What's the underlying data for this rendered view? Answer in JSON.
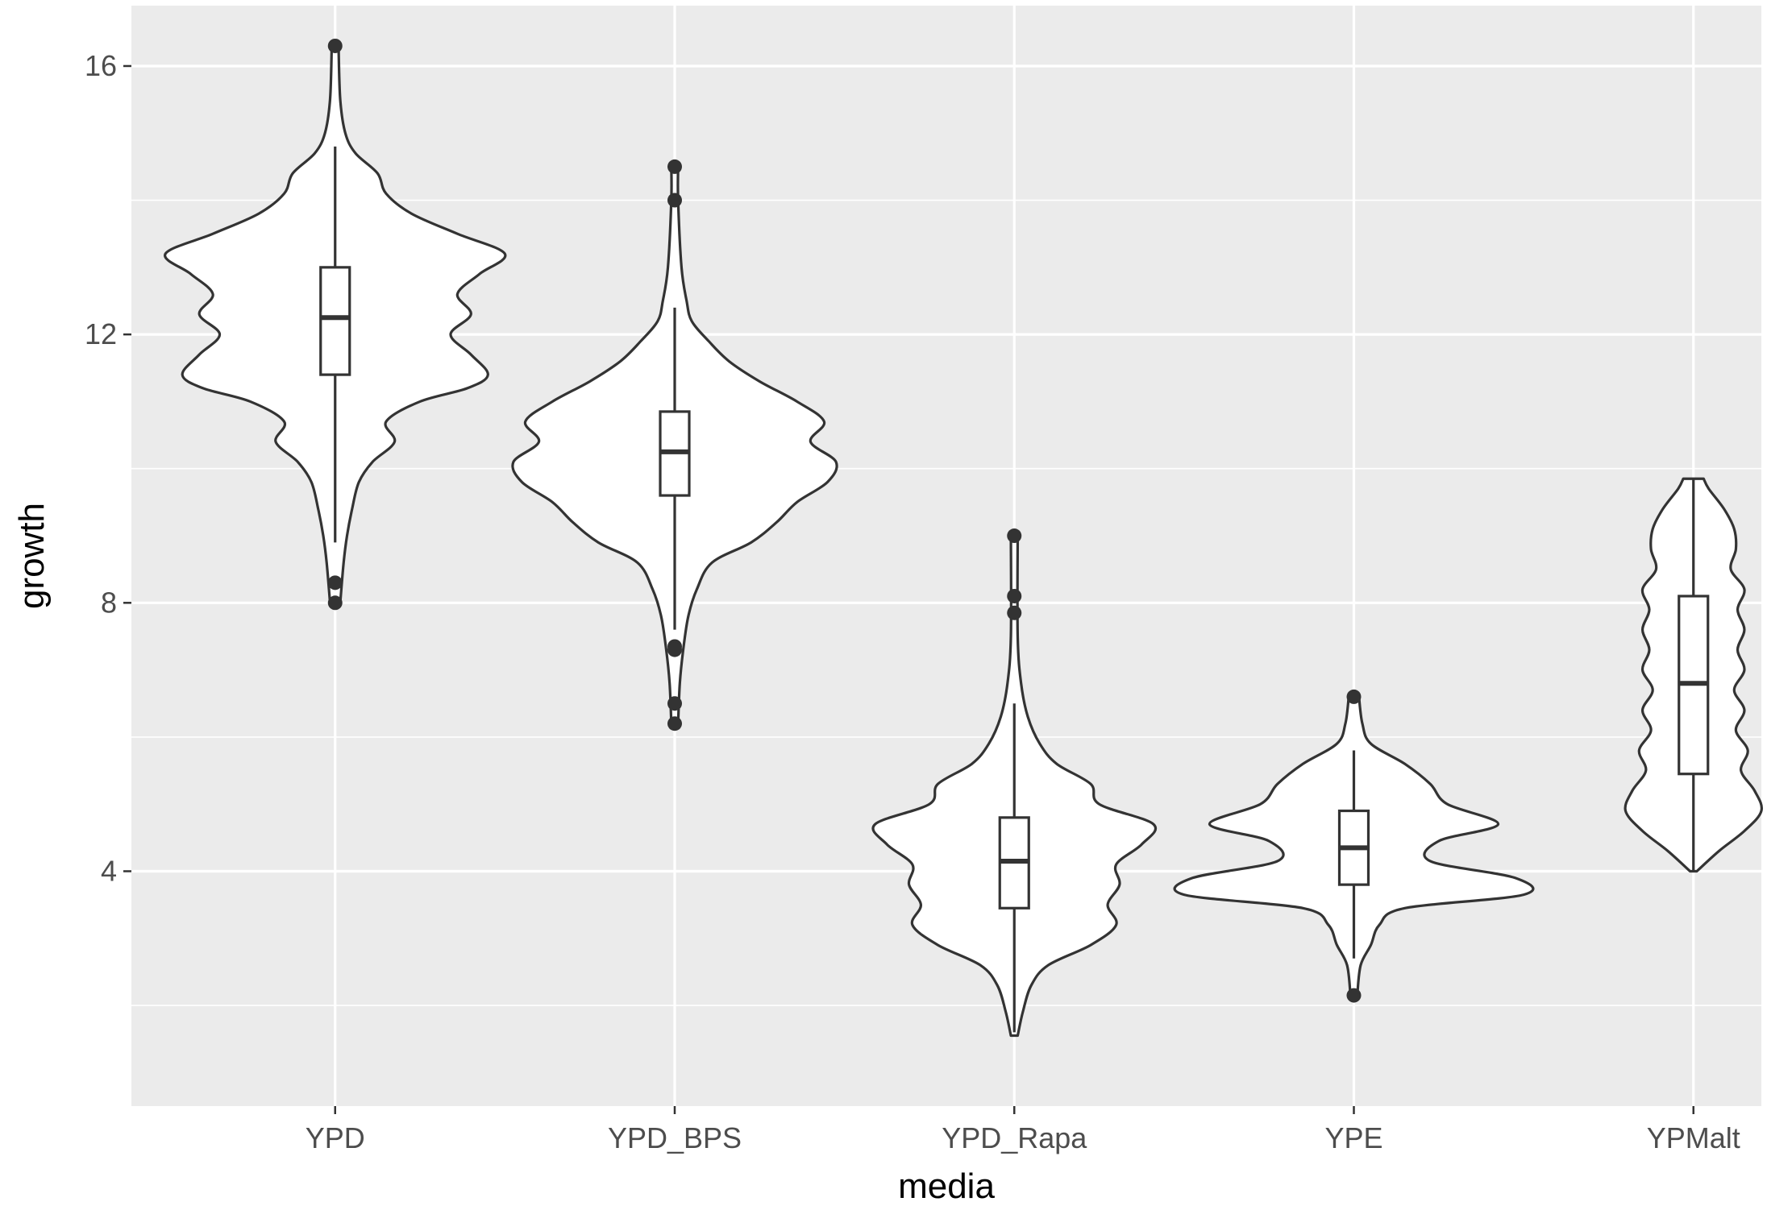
{
  "chart_data": {
    "type": "violin",
    "xlabel": "media",
    "ylabel": "growth",
    "categories": [
      "YPD",
      "YPD_BPS",
      "YPD_Rapa",
      "YPE",
      "YPMalt"
    ],
    "ylim": [
      0.5,
      16.9
    ],
    "yticks": [
      4,
      8,
      12,
      16
    ],
    "grid": true,
    "colors": {
      "panel": "#ebebeb",
      "grid": "#ffffff",
      "outline": "#333333",
      "fill": "#ffffff",
      "tick_text": "#4d4d4d"
    },
    "series": [
      {
        "name": "YPD",
        "box": {
          "q1": 11.4,
          "median": 12.25,
          "q3": 13.0,
          "whisker_low": 8.9,
          "whisker_high": 14.8
        },
        "outliers": [
          16.3,
          8.3,
          8.0
        ],
        "violin_range": [
          8.0,
          16.3
        ],
        "violin": [
          [
            8.0,
            0.03
          ],
          [
            8.6,
            0.05
          ],
          [
            9.0,
            0.07
          ],
          [
            9.4,
            0.1
          ],
          [
            9.8,
            0.14
          ],
          [
            10.1,
            0.22
          ],
          [
            10.4,
            0.35
          ],
          [
            10.7,
            0.3
          ],
          [
            11.0,
            0.5
          ],
          [
            11.2,
            0.78
          ],
          [
            11.4,
            0.9
          ],
          [
            11.7,
            0.8
          ],
          [
            12.0,
            0.68
          ],
          [
            12.3,
            0.8
          ],
          [
            12.6,
            0.72
          ],
          [
            12.9,
            0.85
          ],
          [
            13.2,
            1.0
          ],
          [
            13.5,
            0.72
          ],
          [
            13.8,
            0.45
          ],
          [
            14.1,
            0.3
          ],
          [
            14.4,
            0.25
          ],
          [
            14.7,
            0.12
          ],
          [
            15.0,
            0.06
          ],
          [
            15.5,
            0.03
          ],
          [
            16.3,
            0.02
          ]
        ]
      },
      {
        "name": "YPD_BPS",
        "box": {
          "q1": 9.6,
          "median": 10.25,
          "q3": 10.85,
          "whisker_low": 7.6,
          "whisker_high": 12.4
        },
        "outliers": [
          14.5,
          14.0,
          7.35,
          7.3,
          6.5,
          6.2
        ],
        "violin_range": [
          6.2,
          14.5
        ],
        "violin": [
          [
            6.2,
            0.02
          ],
          [
            6.8,
            0.03
          ],
          [
            7.3,
            0.05
          ],
          [
            7.8,
            0.08
          ],
          [
            8.2,
            0.13
          ],
          [
            8.6,
            0.22
          ],
          [
            8.9,
            0.45
          ],
          [
            9.2,
            0.6
          ],
          [
            9.5,
            0.72
          ],
          [
            9.8,
            0.9
          ],
          [
            10.1,
            0.95
          ],
          [
            10.4,
            0.8
          ],
          [
            10.7,
            0.88
          ],
          [
            11.0,
            0.72
          ],
          [
            11.3,
            0.5
          ],
          [
            11.6,
            0.32
          ],
          [
            11.9,
            0.2
          ],
          [
            12.2,
            0.1
          ],
          [
            12.5,
            0.07
          ],
          [
            13.0,
            0.04
          ],
          [
            14.0,
            0.02
          ],
          [
            14.5,
            0.02
          ]
        ]
      },
      {
        "name": "YPD_Rapa",
        "box": {
          "q1": 3.45,
          "median": 4.15,
          "q3": 4.8,
          "whisker_low": 1.6,
          "whisker_high": 6.5
        },
        "outliers": [
          9.0,
          8.1,
          7.85
        ],
        "violin_range": [
          1.55,
          9.0
        ],
        "violin": [
          [
            1.55,
            0.02
          ],
          [
            1.9,
            0.05
          ],
          [
            2.3,
            0.1
          ],
          [
            2.6,
            0.2
          ],
          [
            2.9,
            0.45
          ],
          [
            3.2,
            0.6
          ],
          [
            3.5,
            0.55
          ],
          [
            3.8,
            0.62
          ],
          [
            4.1,
            0.6
          ],
          [
            4.4,
            0.75
          ],
          [
            4.7,
            0.82
          ],
          [
            5.0,
            0.5
          ],
          [
            5.3,
            0.45
          ],
          [
            5.6,
            0.25
          ],
          [
            5.9,
            0.15
          ],
          [
            6.3,
            0.08
          ],
          [
            6.8,
            0.04
          ],
          [
            7.5,
            0.02
          ],
          [
            9.0,
            0.02
          ]
        ]
      },
      {
        "name": "YPE",
        "box": {
          "q1": 3.8,
          "median": 4.35,
          "q3": 4.9,
          "whisker_low": 2.7,
          "whisker_high": 5.8
        },
        "outliers": [
          6.6,
          2.15
        ],
        "violin_range": [
          2.15,
          6.6
        ],
        "violin": [
          [
            2.15,
            0.02
          ],
          [
            2.6,
            0.04
          ],
          [
            2.9,
            0.1
          ],
          [
            3.2,
            0.15
          ],
          [
            3.45,
            0.3
          ],
          [
            3.65,
            1.0
          ],
          [
            3.9,
            0.95
          ],
          [
            4.15,
            0.45
          ],
          [
            4.45,
            0.5
          ],
          [
            4.7,
            0.85
          ],
          [
            5.0,
            0.55
          ],
          [
            5.3,
            0.45
          ],
          [
            5.6,
            0.3
          ],
          [
            5.9,
            0.1
          ],
          [
            6.2,
            0.05
          ],
          [
            6.6,
            0.03
          ]
        ]
      },
      {
        "name": "YPMalt",
        "box": {
          "q1": 5.45,
          "median": 6.8,
          "q3": 8.1,
          "whisker_low": 4.0,
          "whisker_high": 9.85
        },
        "outliers": [],
        "violin_range": [
          4.0,
          9.85
        ],
        "violin": [
          [
            4.0,
            0.02
          ],
          [
            4.3,
            0.15
          ],
          [
            4.6,
            0.3
          ],
          [
            4.9,
            0.4
          ],
          [
            5.2,
            0.36
          ],
          [
            5.5,
            0.28
          ],
          [
            5.8,
            0.32
          ],
          [
            6.1,
            0.25
          ],
          [
            6.4,
            0.3
          ],
          [
            6.7,
            0.24
          ],
          [
            7.0,
            0.3
          ],
          [
            7.3,
            0.26
          ],
          [
            7.6,
            0.3
          ],
          [
            7.9,
            0.26
          ],
          [
            8.2,
            0.3
          ],
          [
            8.5,
            0.22
          ],
          [
            8.8,
            0.25
          ],
          [
            9.1,
            0.24
          ],
          [
            9.4,
            0.18
          ],
          [
            9.7,
            0.09
          ],
          [
            9.85,
            0.06
          ]
        ]
      }
    ]
  }
}
